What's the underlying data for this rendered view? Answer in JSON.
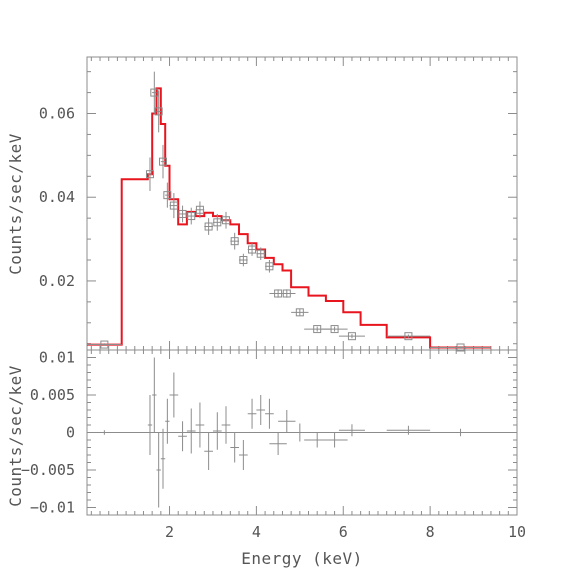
{
  "chart_data": [
    {
      "type": "line",
      "panel": "top",
      "ylabel": "Counts/sec/keV",
      "xlim": [
        0.1,
        10
      ],
      "ylim": [
        0.0035,
        0.0735
      ],
      "yticks": [
        0.02,
        0.04,
        0.06
      ],
      "ytick_labels": [
        "0.02",
        "0.04",
        "0.06"
      ],
      "grid": false,
      "colors": {
        "model": "#e8141e",
        "data": "#8c8c8c"
      },
      "series": [
        {
          "kind": "step-model",
          "edges": [
            0.1,
            0.9,
            1.5,
            1.6,
            1.7,
            1.8,
            1.9,
            2.0,
            2.2,
            2.4,
            2.6,
            2.8,
            3.0,
            3.2,
            3.4,
            3.6,
            3.8,
            4.0,
            4.2,
            4.4,
            4.6,
            4.8,
            5.2,
            5.6,
            6.0,
            6.4,
            7.0,
            8.0,
            9.4
          ],
          "values": [
            0.0048,
            0.0443,
            0.0455,
            0.06,
            0.066,
            0.0575,
            0.0475,
            0.0395,
            0.0335,
            0.0365,
            0.0355,
            0.0363,
            0.0355,
            0.0345,
            0.0335,
            0.0312,
            0.029,
            0.0275,
            0.0255,
            0.024,
            0.0225,
            0.0185,
            0.0165,
            0.0152,
            0.0125,
            0.0095,
            0.0065,
            0.0041
          ]
        },
        {
          "kind": "data-points",
          "x": [
            0.5,
            1.55,
            1.65,
            1.75,
            1.85,
            1.95,
            2.1,
            2.3,
            2.5,
            2.7,
            2.9,
            3.1,
            3.3,
            3.5,
            3.7,
            3.9,
            4.1,
            4.3,
            4.5,
            4.7,
            5.0,
            5.4,
            5.8,
            6.2,
            7.5,
            8.7
          ],
          "y": [
            0.0048,
            0.0455,
            0.065,
            0.0605,
            0.0485,
            0.0405,
            0.038,
            0.036,
            0.0355,
            0.037,
            0.033,
            0.034,
            0.0345,
            0.0295,
            0.025,
            0.0275,
            0.0265,
            0.0235,
            0.017,
            0.017,
            0.0125,
            0.0085,
            0.0085,
            0.0068,
            0.0068,
            0.0041
          ],
          "xerr": [
            0.4,
            0.05,
            0.05,
            0.05,
            0.05,
            0.05,
            0.1,
            0.1,
            0.1,
            0.1,
            0.1,
            0.1,
            0.1,
            0.1,
            0.1,
            0.1,
            0.1,
            0.1,
            0.2,
            0.2,
            0.2,
            0.3,
            0.3,
            0.3,
            0.5,
            0.7
          ],
          "yerr": [
            0.0003,
            0.004,
            0.005,
            0.005,
            0.004,
            0.003,
            0.003,
            0.002,
            0.002,
            0.002,
            0.002,
            0.002,
            0.002,
            0.002,
            0.0015,
            0.0015,
            0.0015,
            0.0015,
            0.001,
            0.001,
            0.0008,
            0.0006,
            0.0006,
            0.0005,
            0.0004,
            0.0003
          ]
        }
      ]
    },
    {
      "type": "scatter",
      "panel": "bottom",
      "xlabel": "Energy (keV)",
      "ylabel": "Counts/sec/keV",
      "xlim": [
        0.1,
        10
      ],
      "ylim": [
        -0.011,
        0.011
      ],
      "xticks": [
        2,
        4,
        6,
        8,
        10
      ],
      "xtick_labels": [
        "2",
        "4",
        "6",
        "8",
        "10"
      ],
      "yticks": [
        -0.01,
        -0.005,
        0,
        0.005,
        0.01
      ],
      "ytick_labels": [
        "−0.01",
        "−0.005",
        "0",
        "0.005",
        "0.01"
      ],
      "grid": false,
      "reference_line": 0,
      "colors": {
        "data": "#8c8c8c"
      },
      "series": [
        {
          "kind": "residuals",
          "x": [
            0.5,
            1.55,
            1.65,
            1.75,
            1.85,
            1.95,
            2.1,
            2.3,
            2.5,
            2.7,
            2.9,
            3.1,
            3.3,
            3.5,
            3.7,
            3.9,
            4.1,
            4.3,
            4.5,
            4.7,
            5.0,
            5.4,
            5.8,
            6.2,
            7.5,
            8.7
          ],
          "y": [
            0.0,
            0.001,
            0.005,
            -0.005,
            -0.0035,
            0.0015,
            0.005,
            -0.0005,
            0.0002,
            0.001,
            -0.0025,
            0.0002,
            0.001,
            -0.002,
            -0.003,
            0.0025,
            0.003,
            0.0025,
            -0.0015,
            0.0015,
            0.0,
            -0.001,
            -0.001,
            0.0003,
            0.0003,
            0.0
          ],
          "xerr": [
            0.4,
            0.05,
            0.05,
            0.05,
            0.05,
            0.05,
            0.1,
            0.1,
            0.1,
            0.1,
            0.1,
            0.1,
            0.1,
            0.1,
            0.1,
            0.1,
            0.1,
            0.1,
            0.2,
            0.2,
            0.2,
            0.3,
            0.3,
            0.3,
            0.5,
            0.7
          ],
          "yerr": [
            0.0003,
            0.004,
            0.005,
            0.005,
            0.004,
            0.003,
            0.003,
            0.002,
            0.003,
            0.003,
            0.0025,
            0.0025,
            0.0025,
            0.002,
            0.002,
            0.002,
            0.002,
            0.002,
            0.0015,
            0.0015,
            0.0012,
            0.001,
            0.001,
            0.0008,
            0.0006,
            0.0005
          ]
        }
      ]
    }
  ]
}
